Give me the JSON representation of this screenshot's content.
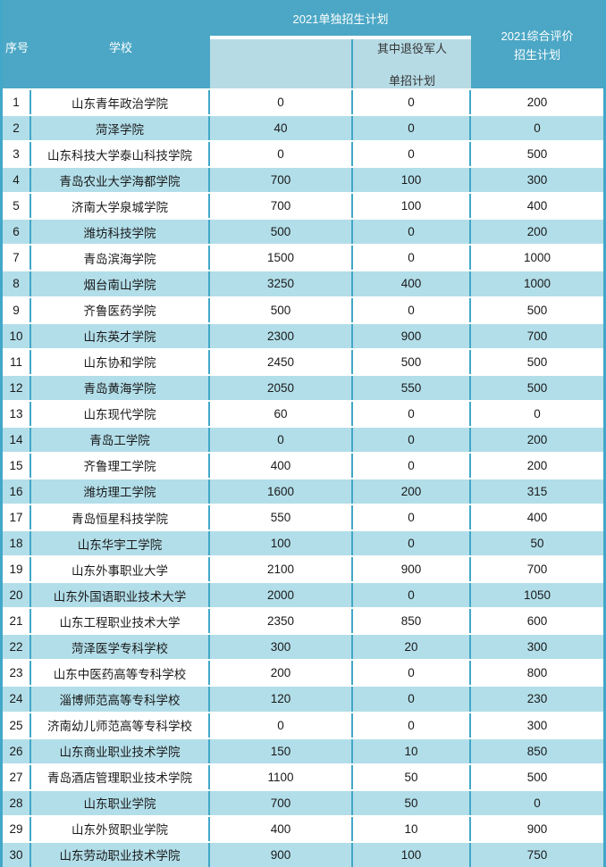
{
  "table": {
    "header": {
      "no": "序号",
      "school": "学校",
      "separate_plan": "2021单独招生计划",
      "veteran_line1": "其中退役军人",
      "veteran_line2": "单招计划",
      "comprehensive_line1": "2021综合评价",
      "comprehensive_line2": "招生计划"
    }
  },
  "colors": {
    "header_bg": "#4BA7C5",
    "grid_line": "#42A7C8",
    "alt_row_bg": "#B2DEE9",
    "subheader_bg": "#B6DBE5",
    "separator": "#FFFFFF",
    "header_text": "#FFFFFF",
    "body_text": "#1A1A1A",
    "subheader_text": "#333333"
  },
  "chart_data": {
    "type": "table",
    "columns": [
      "序号",
      "学校",
      "2021单独招生计划",
      "其中退役军人单招计划",
      "2021综合评价招生计划"
    ],
    "rows": [
      [
        "1",
        "山东青年政治学院",
        "0",
        "0",
        "200"
      ],
      [
        "2",
        "菏泽学院",
        "40",
        "0",
        "0"
      ],
      [
        "3",
        "山东科技大学泰山科技学院",
        "0",
        "0",
        "500"
      ],
      [
        "4",
        "青岛农业大学海都学院",
        "700",
        "100",
        "300"
      ],
      [
        "5",
        "济南大学泉城学院",
        "700",
        "100",
        "400"
      ],
      [
        "6",
        "潍坊科技学院",
        "500",
        "0",
        "200"
      ],
      [
        "7",
        "青岛滨海学院",
        "1500",
        "0",
        "1000"
      ],
      [
        "8",
        "烟台南山学院",
        "3250",
        "400",
        "1000"
      ],
      [
        "9",
        "齐鲁医药学院",
        "500",
        "0",
        "500"
      ],
      [
        "10",
        "山东英才学院",
        "2300",
        "900",
        "700"
      ],
      [
        "11",
        "山东协和学院",
        "2450",
        "500",
        "500"
      ],
      [
        "12",
        "青岛黄海学院",
        "2050",
        "550",
        "500"
      ],
      [
        "13",
        "山东现代学院",
        "60",
        "0",
        "0"
      ],
      [
        "14",
        "青岛工学院",
        "0",
        "0",
        "200"
      ],
      [
        "15",
        "齐鲁理工学院",
        "400",
        "0",
        "200"
      ],
      [
        "16",
        "潍坊理工学院",
        "1600",
        "200",
        "315"
      ],
      [
        "17",
        "青岛恒星科技学院",
        "550",
        "0",
        "400"
      ],
      [
        "18",
        "山东华宇工学院",
        "100",
        "0",
        "50"
      ],
      [
        "19",
        "山东外事职业大学",
        "2100",
        "900",
        "700"
      ],
      [
        "20",
        "山东外国语职业技术大学",
        "2000",
        "0",
        "1050"
      ],
      [
        "21",
        "山东工程职业技术大学",
        "2350",
        "850",
        "600"
      ],
      [
        "22",
        "菏泽医学专科学校",
        "300",
        "20",
        "300"
      ],
      [
        "23",
        "山东中医药高等专科学校",
        "200",
        "0",
        "800"
      ],
      [
        "24",
        "淄博师范高等专科学校",
        "120",
        "0",
        "230"
      ],
      [
        "25",
        "济南幼儿师范高等专科学校",
        "0",
        "0",
        "300"
      ],
      [
        "26",
        "山东商业职业技术学院",
        "150",
        "10",
        "850"
      ],
      [
        "27",
        "青岛酒店管理职业技术学院",
        "1100",
        "50",
        "500"
      ],
      [
        "28",
        "山东职业学院",
        "700",
        "50",
        "0"
      ],
      [
        "29",
        "山东外贸职业学院",
        "400",
        "10",
        "900"
      ],
      [
        "30",
        "山东劳动职业技术学院",
        "900",
        "100",
        "750"
      ]
    ]
  }
}
